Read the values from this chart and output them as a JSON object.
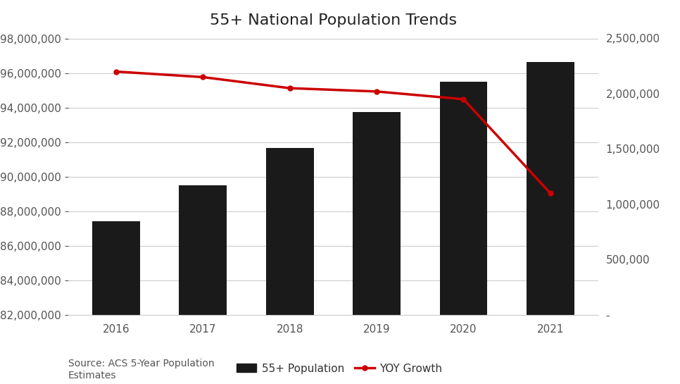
{
  "title": "55+ National Population Trends",
  "years": [
    2016,
    2017,
    2018,
    2019,
    2020,
    2021
  ],
  "population": [
    87400000,
    89500000,
    91650000,
    93750000,
    95500000,
    96650000
  ],
  "yoy_growth": [
    2200000,
    2150000,
    2050000,
    2020000,
    1950000,
    1100000
  ],
  "bar_color": "#1a1a1a",
  "line_color": "#cc0000",
  "ylim_left": [
    82000000,
    98000000
  ],
  "ylim_right": [
    0,
    2500000
  ],
  "yticks_left": [
    82000000,
    84000000,
    86000000,
    88000000,
    90000000,
    92000000,
    94000000,
    96000000,
    98000000
  ],
  "yticks_right": [
    0,
    500000,
    1000000,
    1500000,
    2000000,
    2500000
  ],
  "source_text": "Source: ACS 5-Year Population\nEstimates",
  "legend_bar_label": "55+ Population",
  "legend_line_label": "YOY Growth",
  "title_fontsize": 16,
  "tick_fontsize": 11,
  "source_fontsize": 10,
  "legend_fontsize": 11,
  "background_color": "#ffffff",
  "grid_color": "#cccccc"
}
